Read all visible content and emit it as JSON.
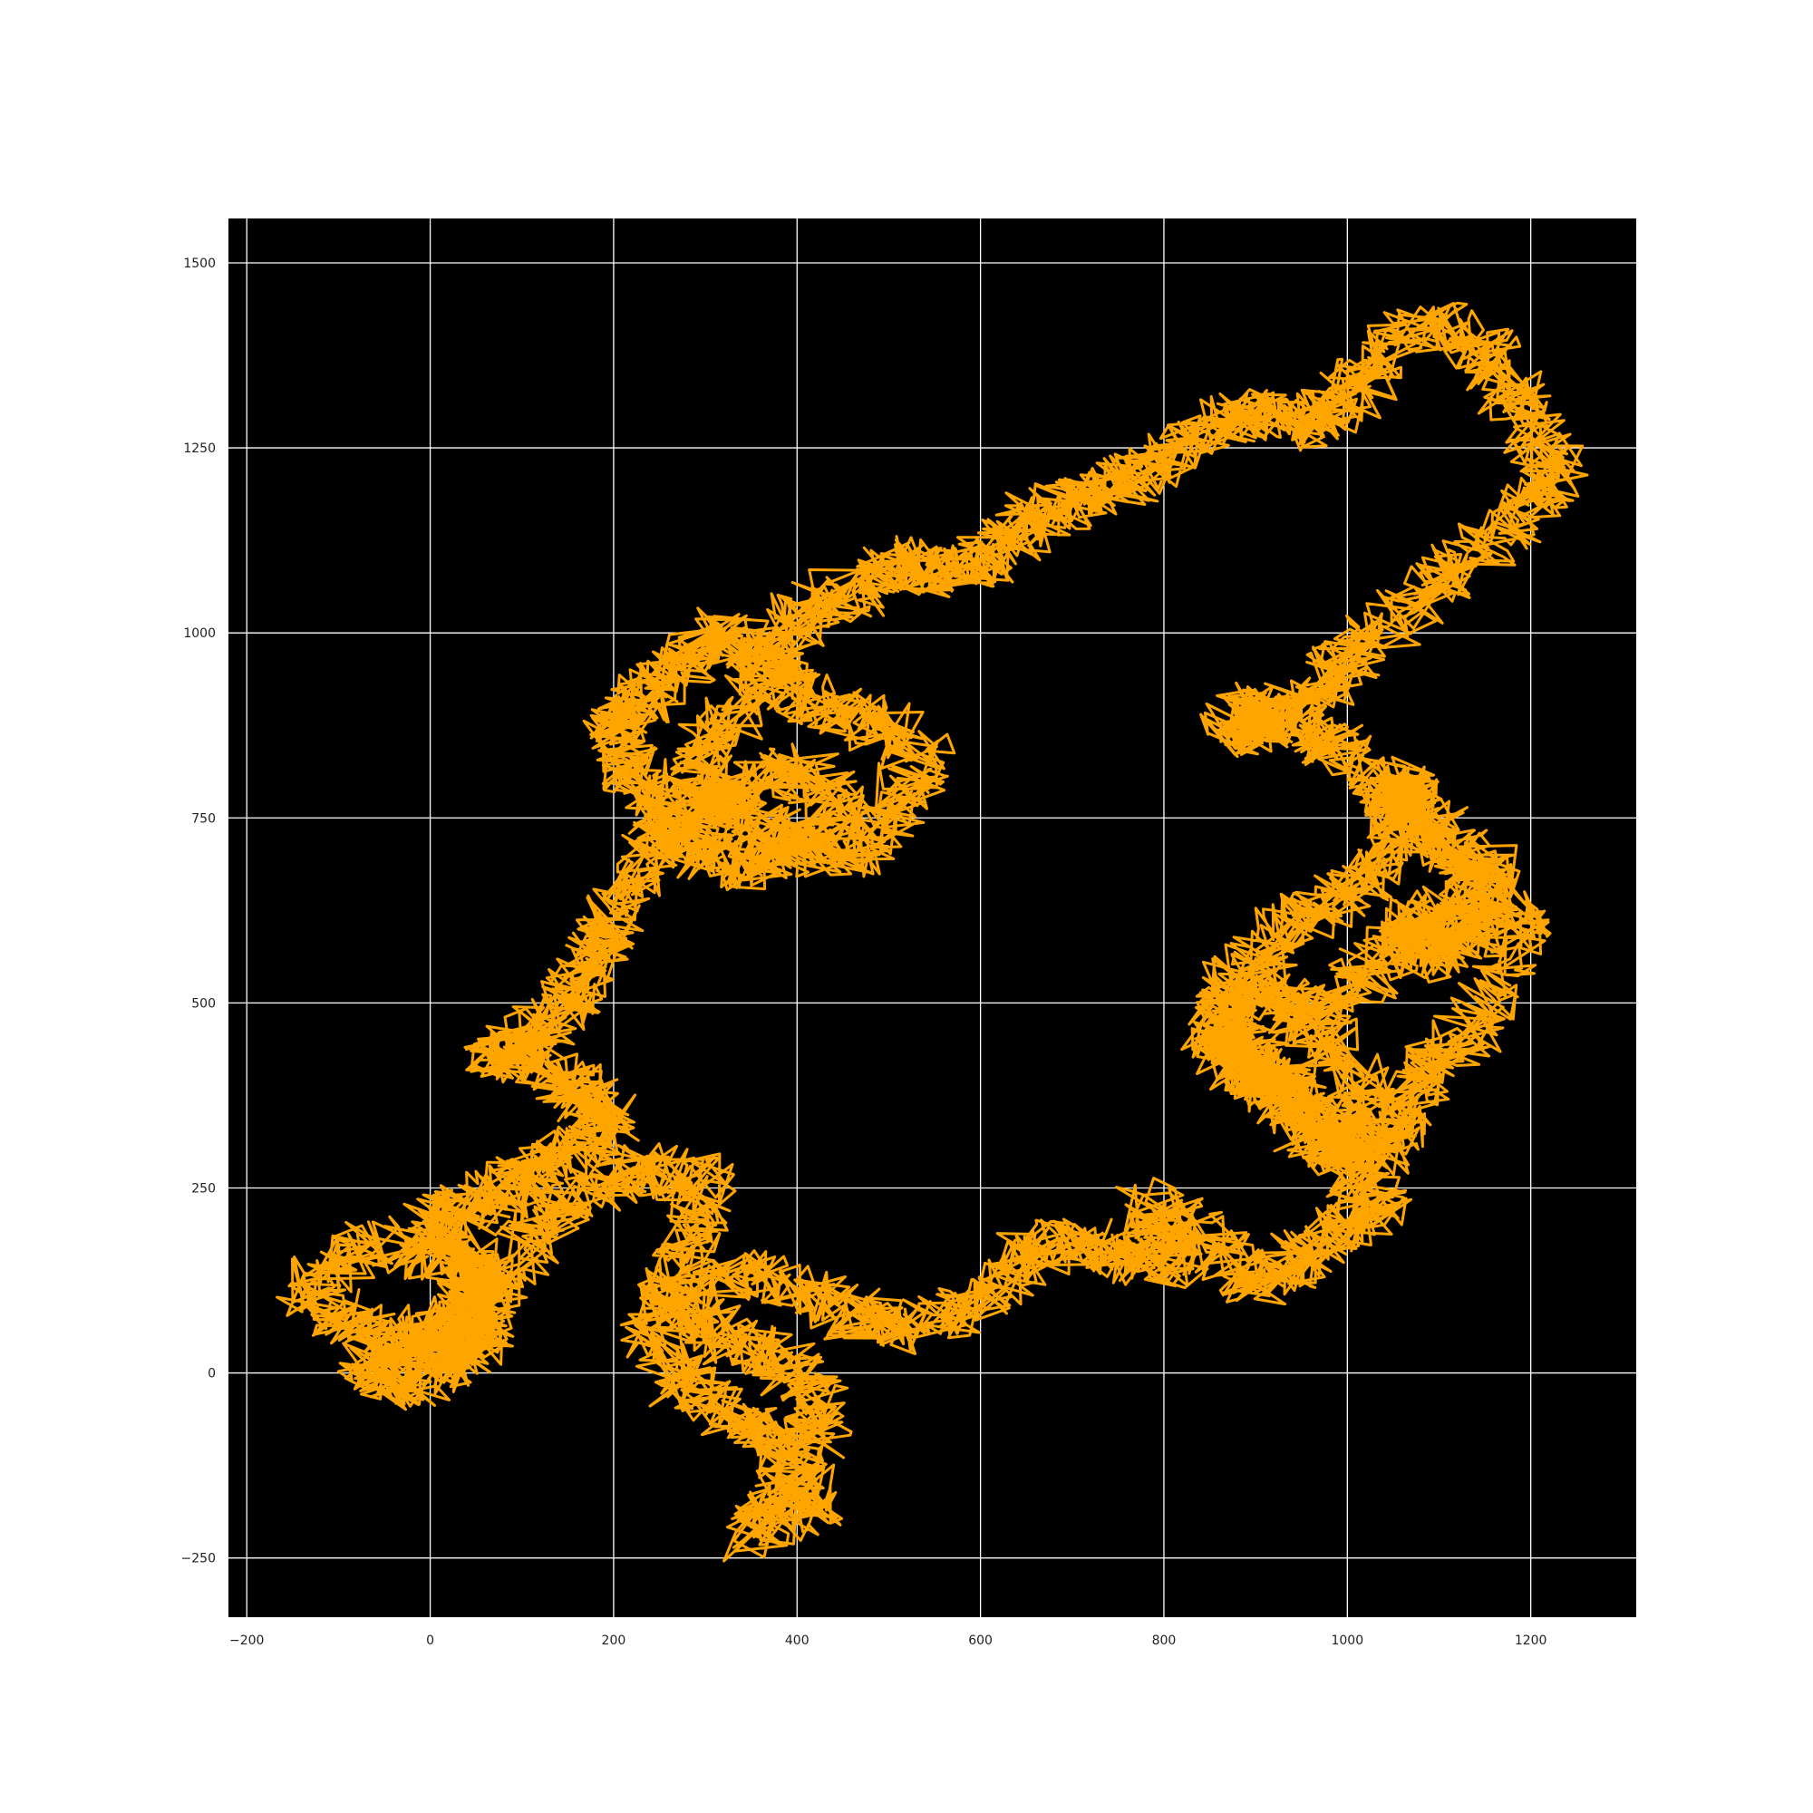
{
  "chart_data": {
    "type": "line",
    "title": "",
    "xlabel": "",
    "ylabel": "",
    "xlim": [
      -220,
      1315
    ],
    "ylim": [
      -330,
      1560
    ],
    "xticks": [
      -200,
      0,
      200,
      400,
      600,
      800,
      1000,
      1200
    ],
    "yticks": [
      -250,
      0,
      250,
      500,
      750,
      1000,
      1250,
      1500
    ],
    "xtick_labels": [
      "−200",
      "0",
      "200",
      "400",
      "600",
      "800",
      "1000",
      "1200"
    ],
    "ytick_labels": [
      "−250",
      "0",
      "250",
      "500",
      "750",
      "1000",
      "1250",
      "1500"
    ],
    "grid": true,
    "background_color": "#000000",
    "grid_color": "#ffffff",
    "series": [
      {
        "color": "#ffa500",
        "x": [
          0,
          60,
          20,
          -60,
          -140,
          -90,
          -20,
          60,
          110,
          160,
          230,
          300,
          280,
          250,
          320,
          380,
          430,
          400,
          350,
          420,
          380,
          330,
          270,
          240,
          320,
          390,
          460,
          520,
          600,
          650,
          700,
          760,
          820,
          780,
          850,
          900,
          950,
          1000,
          1040,
          980,
          920,
          880,
          850,
          900,
          960,
          1000,
          1020,
          980,
          900,
          960,
          1020,
          1080,
          1150,
          1120,
          1070,
          1060,
          1100,
          1170,
          1130,
          1080,
          1060,
          1120,
          1200,
          1150,
          1100,
          1060,
          1040,
          980,
          930,
          880,
          860,
          900,
          960,
          1010,
          1060,
          1050,
          990,
          950,
          900,
          870,
          920,
          980,
          1020,
          1080,
          1140,
          1200,
          1230,
          1190,
          1150,
          1100,
          1040,
          1000,
          960,
          900,
          850,
          800,
          750,
          700,
          650,
          610,
          560,
          520,
          470,
          420,
          380,
          340,
          300,
          290,
          330,
          390,
          450,
          500,
          540,
          480,
          420,
          370,
          320,
          270,
          230,
          200,
          230,
          260,
          300,
          350,
          400,
          450,
          400,
          340,
          290,
          240,
          200,
          180,
          150,
          110,
          60,
          120,
          170,
          200,
          150,
          100,
          60,
          0,
          40,
          70,
          30,
          -30,
          -70,
          -20,
          30,
          60,
          20
        ],
        "y": [
          0,
          80,
          150,
          180,
          120,
          60,
          30,
          90,
          180,
          240,
          280,
          260,
          180,
          100,
          50,
          20,
          -50,
          -130,
          -220,
          -180,
          -100,
          -60,
          -20,
          60,
          140,
          120,
          80,
          60,
          90,
          160,
          180,
          150,
          150,
          230,
          180,
          120,
          160,
          200,
          230,
          300,
          380,
          420,
          460,
          400,
          350,
          300,
          380,
          460,
          520,
          480,
          540,
          600,
          650,
          700,
          760,
          800,
          740,
          660,
          600,
          560,
          620,
          580,
          620,
          480,
          420,
          360,
          300,
          330,
          400,
          450,
          500,
          560,
          620,
          660,
          720,
          780,
          840,
          880,
          900,
          860,
          880,
          940,
          980,
          1050,
          1100,
          1180,
          1230,
          1300,
          1380,
          1420,
          1380,
          1320,
          1280,
          1300,
          1280,
          1230,
          1200,
          1180,
          1150,
          1100,
          1080,
          1100,
          1060,
          1040,
          980,
          900,
          840,
          780,
          760,
          720,
          700,
          750,
          840,
          880,
          900,
          960,
          1000,
          960,
          900,
          860,
          800,
          740,
          700,
          680,
          720,
          760,
          820,
          790,
          760,
          700,
          620,
          560,
          500,
          460,
          430,
          420,
          380,
          340,
          300,
          260,
          230,
          200,
          160,
          120,
          80,
          40,
          10,
          -20,
          30,
          60,
          20
        ]
      }
    ]
  }
}
